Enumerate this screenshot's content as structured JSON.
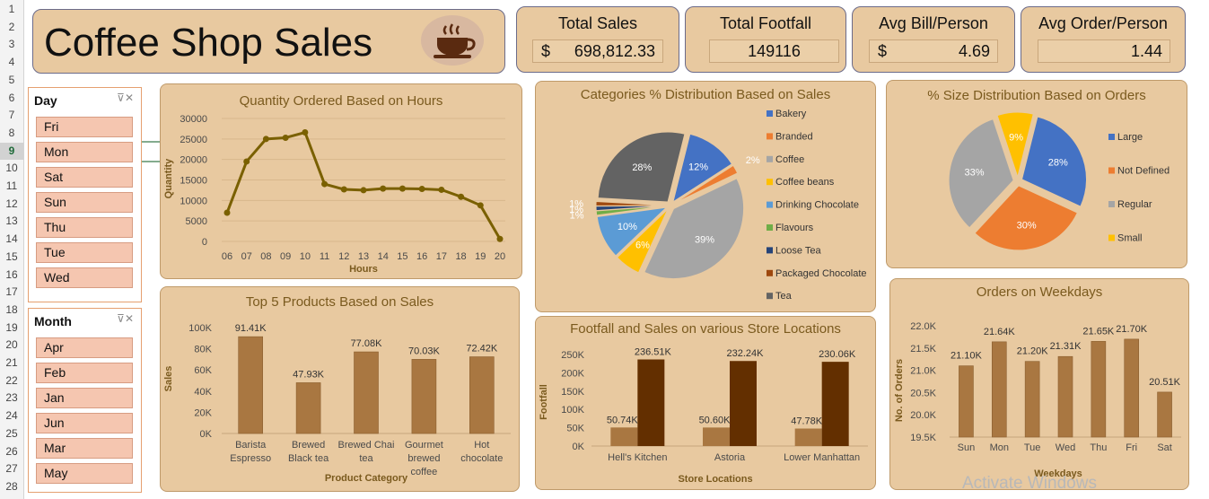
{
  "rows": [
    "1",
    "2",
    "3",
    "4",
    "5",
    "6",
    "7",
    "8",
    "9",
    "10",
    "11",
    "12",
    "13",
    "14",
    "15",
    "16",
    "17",
    "18",
    "19",
    "20",
    "21",
    "22",
    "23",
    "24",
    "25",
    "26",
    "27",
    "28"
  ],
  "header": {
    "title": "Coffee Shop Sales",
    "cup_icon": "coffee-cup-icon"
  },
  "kpis": {
    "total_sales": {
      "label": "Total Sales",
      "currency": "$",
      "value": "698,812.33"
    },
    "total_footfall": {
      "label": "Total Footfall",
      "value": "149116"
    },
    "avg_bill": {
      "label": "Avg Bill/Person",
      "currency": "$",
      "value": "4.69"
    },
    "avg_order": {
      "label": "Avg Order/Person",
      "value": "1.44"
    }
  },
  "slicers": {
    "day": {
      "title": "Day",
      "items": [
        "Fri",
        "Mon",
        "Sat",
        "Sun",
        "Thu",
        "Tue",
        "Wed"
      ]
    },
    "month": {
      "title": "Month",
      "items": [
        "Apr",
        "Feb",
        "Jan",
        "Jun",
        "Mar",
        "May"
      ]
    }
  },
  "colors": {
    "panel": "#e8c9a0",
    "bar": "#a97741",
    "bar_dark": "#632f00",
    "line": "#7a6000",
    "title_text": "#7a5a1e"
  },
  "chart_data": [
    {
      "id": "hours",
      "type": "line",
      "title": "Quantity Ordered Based on Hours",
      "xlabel": "Hours",
      "ylabel": "Quantity",
      "x": [
        "06",
        "07",
        "08",
        "09",
        "10",
        "11",
        "12",
        "13",
        "14",
        "15",
        "16",
        "17",
        "18",
        "19",
        "20"
      ],
      "values": [
        7000,
        19500,
        25000,
        25300,
        26600,
        14000,
        12700,
        12500,
        12900,
        12900,
        12800,
        12600,
        10900,
        8800,
        600
      ],
      "ylim": [
        0,
        30000
      ],
      "yticks": [
        "0",
        "5000",
        "10000",
        "15000",
        "20000",
        "25000",
        "30000"
      ],
      "grid": true
    },
    {
      "id": "categories",
      "type": "pie",
      "title": "Categories % Distribution Based on Sales",
      "labels": [
        "Bakery",
        "Branded",
        "Coffee",
        "Coffee beans",
        "Drinking Chocolate",
        "Flavours",
        "Loose Tea",
        "Packaged Chocolate",
        "Tea"
      ],
      "values": [
        12,
        2,
        39,
        6,
        10,
        1,
        1,
        1,
        28
      ],
      "data_labels": [
        "12%",
        "2%",
        "39%",
        "6%",
        "10%",
        "1%",
        "1%",
        "1%",
        "28%"
      ],
      "colors": [
        "#4472c4",
        "#ed7d31",
        "#a5a5a5",
        "#ffc000",
        "#5b9bd5",
        "#70ad47",
        "#264478",
        "#9e480e",
        "#636363"
      ],
      "legend": "right"
    },
    {
      "id": "sizes",
      "type": "pie",
      "title": "% Size Distribution Based on Orders",
      "labels": [
        "Large",
        "Not Defined",
        "Regular",
        "Small"
      ],
      "values": [
        28,
        30,
        33,
        9
      ],
      "data_labels": [
        "28%",
        "30%",
        "33%",
        "9%"
      ],
      "colors": [
        "#4472c4",
        "#ed7d31",
        "#a5a5a5",
        "#ffc000"
      ],
      "legend": "right"
    },
    {
      "id": "top5",
      "type": "bar",
      "title": "Top 5 Products Based on Sales",
      "xlabel": "Product Category",
      "ylabel": "Sales",
      "categories": [
        [
          "Barista",
          "Espresso"
        ],
        [
          "Brewed",
          "Black tea"
        ],
        [
          "Brewed Chai",
          "tea"
        ],
        [
          "Gourmet",
          "brewed",
          "coffee"
        ],
        [
          "Hot",
          "chocolate"
        ]
      ],
      "values": [
        91410,
        47930,
        77080,
        70030,
        72420
      ],
      "data_labels": [
        "91.41K",
        "47.93K",
        "77.08K",
        "70.03K",
        "72.42K"
      ],
      "ylim": [
        0,
        100000
      ],
      "yticks": [
        "0K",
        "20K",
        "40K",
        "60K",
        "80K",
        "100K"
      ]
    },
    {
      "id": "locations",
      "type": "bar",
      "title": "Footfall and Sales on various Store Locations",
      "xlabel": "Store Locations",
      "ylabel": "Footfall",
      "categories": [
        "Hell's Kitchen",
        "Astoria",
        "Lower Manhattan"
      ],
      "series": [
        {
          "values": [
            50740,
            50600,
            47780
          ],
          "data_labels": [
            "50.74K",
            "50.60K",
            "47.78K"
          ],
          "color": "#a97741"
        },
        {
          "values": [
            236510,
            232240,
            230060
          ],
          "data_labels": [
            "236.51K",
            "232.24K",
            "230.06K"
          ],
          "color": "#632f00"
        }
      ],
      "ylim": [
        0,
        250000
      ],
      "yticks": [
        "0K",
        "50K",
        "100K",
        "150K",
        "200K",
        "250K"
      ]
    },
    {
      "id": "weekdays",
      "type": "bar",
      "title": "Orders on Weekdays",
      "xlabel": "Weekdays",
      "ylabel": "No. of Orders",
      "categories": [
        "Sun",
        "Mon",
        "Tue",
        "Wed",
        "Thu",
        "Fri",
        "Sat"
      ],
      "values": [
        21100,
        21640,
        21200,
        21310,
        21650,
        21700,
        20510
      ],
      "data_labels": [
        "21.10K",
        "21.64K",
        "21.20K",
        "21.31K",
        "21.65K",
        "21.70K",
        "20.51K"
      ],
      "ylim": [
        19500,
        22000
      ],
      "yticks": [
        "19.5K",
        "20.0K",
        "20.5K",
        "21.0K",
        "21.5K",
        "22.0K"
      ]
    }
  ],
  "watermark": "Activate Windows"
}
